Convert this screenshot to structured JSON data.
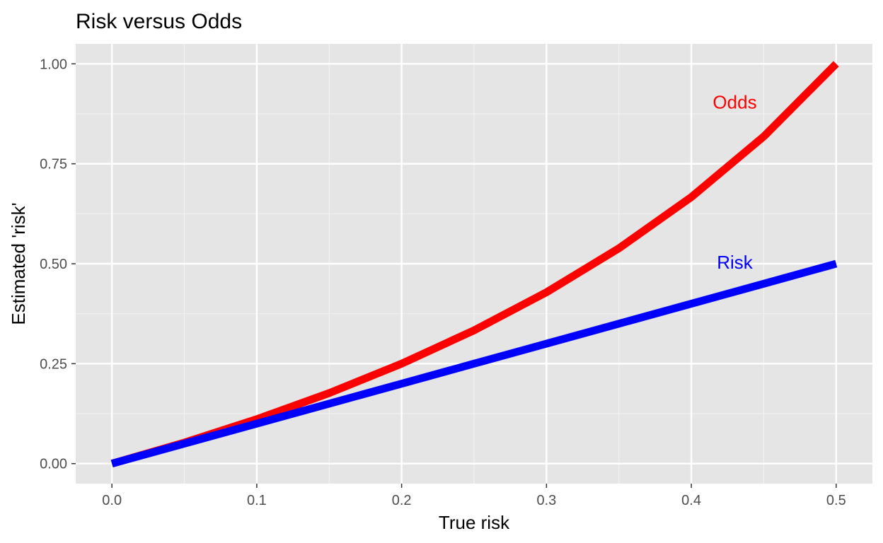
{
  "chart_data": {
    "type": "line",
    "title": "Risk versus Odds",
    "xlabel": "True risk",
    "ylabel": "Estimated 'risk'",
    "xlim": [
      -0.025,
      0.525
    ],
    "ylim": [
      -0.05,
      1.05
    ],
    "x_ticks": [
      0.0,
      0.1,
      0.2,
      0.3,
      0.4,
      0.5
    ],
    "x_tick_labels": [
      "0.0",
      "0.1",
      "0.2",
      "0.3",
      "0.4",
      "0.5"
    ],
    "y_ticks": [
      0.0,
      0.25,
      0.5,
      0.75,
      1.0
    ],
    "y_tick_labels": [
      "0.00",
      "0.25",
      "0.50",
      "0.75",
      "1.00"
    ],
    "grid": true,
    "legend": "none",
    "x": [
      0.0,
      0.05,
      0.1,
      0.15,
      0.2,
      0.25,
      0.3,
      0.35,
      0.4,
      0.45,
      0.5
    ],
    "series": [
      {
        "name": "Odds",
        "color": "#ff0000",
        "values": [
          0.0,
          0.0526,
          0.1111,
          0.1765,
          0.25,
          0.3333,
          0.4286,
          0.5385,
          0.6667,
          0.8182,
          1.0
        ]
      },
      {
        "name": "Risk",
        "color": "#0000ff",
        "values": [
          0.0,
          0.05,
          0.1,
          0.15,
          0.2,
          0.25,
          0.3,
          0.35,
          0.4,
          0.45,
          0.5
        ]
      }
    ],
    "annotations": [
      {
        "text": "Odds",
        "x": 0.43,
        "y": 0.9,
        "color": "#ff0000"
      },
      {
        "text": "Risk",
        "x": 0.43,
        "y": 0.5,
        "color": "#0000ff"
      }
    ]
  }
}
